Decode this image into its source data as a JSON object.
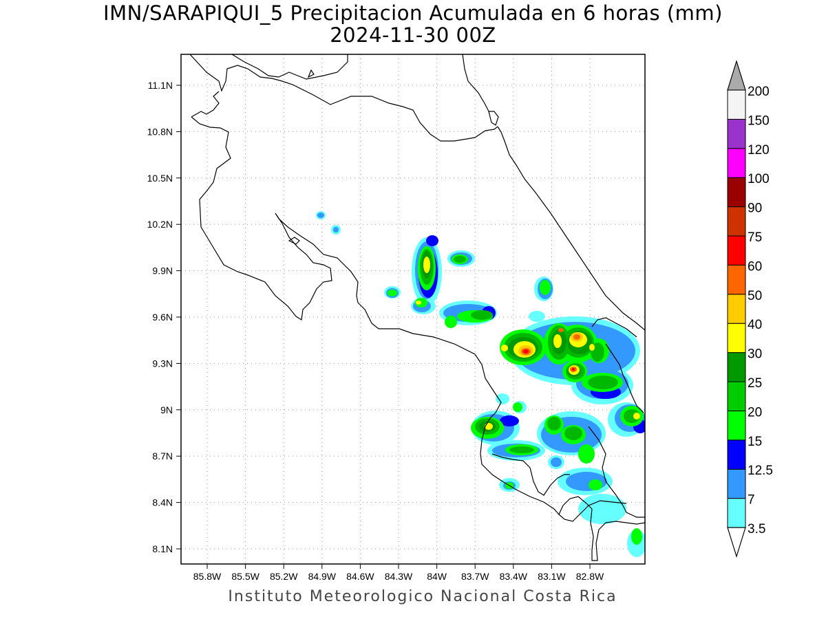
{
  "title": {
    "line1": "IMN/SARAPIQUI_5 Precipitacion Acumulada en 6 horas (mm)",
    "line2": "2024-11-30 00Z"
  },
  "credit": "Instituto Meteorologico Nacional Costa Rica",
  "axes": {
    "lat_labels": [
      "11.1N",
      "10.8N",
      "10.5N",
      "10.2N",
      "9.9N",
      "9.6N",
      "9.3N",
      "9N",
      "8.7N",
      "8.4N",
      "8.1N"
    ],
    "lon_labels": [
      "85.8W",
      "85.5W",
      "85.2W",
      "84.9W",
      "84.6W",
      "84.3W",
      "84W",
      "83.7W",
      "83.4W",
      "83.1W",
      "82.8W"
    ]
  },
  "colorbar": {
    "levels": [
      "3.5",
      "7",
      "12.5",
      "15",
      "20",
      "25",
      "30",
      "40",
      "50",
      "60",
      "75",
      "90",
      "100",
      "120",
      "150",
      "200"
    ],
    "colors": [
      "#66ffff",
      "#3399ff",
      "#0000ff",
      "#00ff00",
      "#00cc00",
      "#009900",
      "#ffff00",
      "#ffcc00",
      "#ff6600",
      "#ff0000",
      "#cc3300",
      "#990000",
      "#ff00ff",
      "#9933cc",
      "#f4f4f4"
    ],
    "over_color": "#aaaaaa",
    "under_color": "#ffffff"
  },
  "colors": {
    "coastline": "#000000",
    "grid": "#999999"
  }
}
